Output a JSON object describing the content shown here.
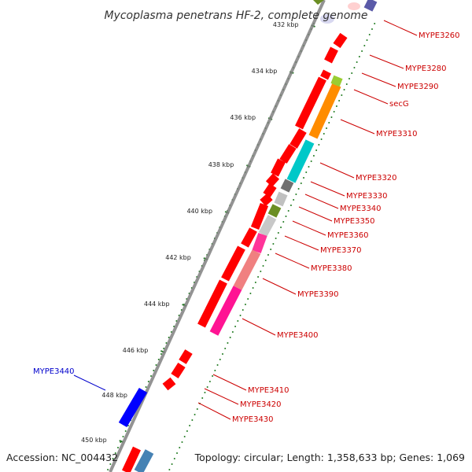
{
  "title": "Mycoplasma penetrans HF-2, complete genome",
  "accession_text": "Accession: NC_004432",
  "summary_text": "Topology: circular; Length: 1,358,633 bp; Genes: 1,069",
  "colors": {
    "backbone": "#808080",
    "gc_dots": "#1f7a1f",
    "forward_gene": "#ff0000",
    "reverse_gene": "#0000ff",
    "forward_label": "#cc0000",
    "reverse_label": "#0000cc"
  },
  "ticks": [
    {
      "label": "432 kbp"
    },
    {
      "label": "434 kbp"
    },
    {
      "label": "436 kbp"
    },
    {
      "label": "438 kbp"
    },
    {
      "label": "440 kbp"
    },
    {
      "label": "442 kbp"
    },
    {
      "label": "444 kbp"
    },
    {
      "label": "446 kbp"
    },
    {
      "label": "448 kbp"
    },
    {
      "label": "450 kbp"
    }
  ],
  "gene_labels": [
    {
      "text": "MYPE3260",
      "strand": "forward"
    },
    {
      "text": "MYPE3280",
      "strand": "forward"
    },
    {
      "text": "MYPE3290",
      "strand": "forward"
    },
    {
      "text": "secG",
      "strand": "forward"
    },
    {
      "text": "MYPE3310",
      "strand": "forward"
    },
    {
      "text": "MYPE3320",
      "strand": "forward"
    },
    {
      "text": "MYPE3330",
      "strand": "forward"
    },
    {
      "text": "MYPE3340",
      "strand": "forward"
    },
    {
      "text": "MYPE3350",
      "strand": "forward"
    },
    {
      "text": "MYPE3360",
      "strand": "forward"
    },
    {
      "text": "MYPE3370",
      "strand": "forward"
    },
    {
      "text": "MYPE3380",
      "strand": "forward"
    },
    {
      "text": "MYPE3390",
      "strand": "forward"
    },
    {
      "text": "MYPE3400",
      "strand": "forward"
    },
    {
      "text": "MYPE3410",
      "strand": "forward"
    },
    {
      "text": "MYPE3420",
      "strand": "forward"
    },
    {
      "text": "MYPE3430",
      "strand": "forward"
    },
    {
      "text": "MYPE3440",
      "strand": "reverse"
    }
  ],
  "gene_blocks": [
    {
      "name": "gene-block-mype3260",
      "color": "#5a5aa8"
    },
    {
      "name": "gene-block-mype3310",
      "color": "#ff8c00"
    },
    {
      "name": "gene-block-secg",
      "color": "#9acd32"
    },
    {
      "name": "gene-block-mype3320",
      "color": "#00c8c8"
    },
    {
      "name": "gene-block-mype3330",
      "color": "#707070"
    },
    {
      "name": "gene-block-mype3350",
      "color": "#c0c0c0"
    },
    {
      "name": "gene-block-mype3360",
      "color": "#6b8e23"
    },
    {
      "name": "gene-block-mype3370",
      "color": "#c8c8c8"
    },
    {
      "name": "gene-block-mype3380",
      "color": "#ff3399"
    },
    {
      "name": "gene-block-mype3390",
      "color": "#f08080"
    },
    {
      "name": "gene-block-mype3400",
      "color": "#ff1493"
    },
    {
      "name": "gene-block-mype3440",
      "color": "#0000ff"
    },
    {
      "name": "gene-block-mype3450",
      "color": "#4682b4"
    }
  ]
}
